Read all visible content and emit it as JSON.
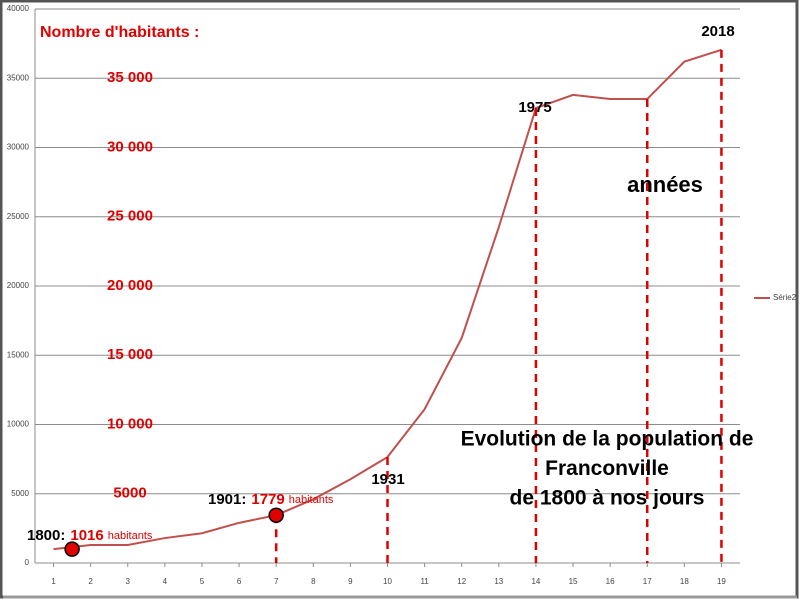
{
  "chart_data": {
    "type": "line",
    "x": [
      1,
      2,
      3,
      4,
      5,
      6,
      7,
      8,
      9,
      10,
      11,
      12,
      13,
      14,
      15,
      16,
      17,
      18,
      19
    ],
    "series": [
      {
        "name": "Série2",
        "color": "#c0504d",
        "values": [
          1000,
          1300,
          1300,
          1800,
          2150,
          2900,
          3450,
          4600,
          6050,
          7650,
          11100,
          16250,
          24250,
          32850,
          33800,
          33500,
          33500,
          36200,
          37050
        ]
      }
    ],
    "xlim": [
      0.5,
      19.5
    ],
    "xticks": [
      1,
      2,
      3,
      4,
      5,
      6,
      7,
      8,
      9,
      10,
      11,
      12,
      13,
      14,
      15,
      16,
      17,
      18,
      19
    ],
    "ylim": [
      0,
      40000
    ],
    "yticks": [
      0,
      5000,
      10000,
      15000,
      20000,
      25000,
      30000,
      35000,
      40000
    ],
    "grid": true,
    "legend": "right",
    "y_caption": "Nombre d'habitants :",
    "y_overlay_labels": [
      {
        "value": 35000,
        "label": "35 000"
      },
      {
        "value": 30000,
        "label": "30 000"
      },
      {
        "value": 25000,
        "label": "25 000"
      },
      {
        "value": 20000,
        "label": "20 000"
      },
      {
        "value": 15000,
        "label": "15 000"
      },
      {
        "value": 10000,
        "label": "10 000"
      },
      {
        "value": 5000,
        "label": "5000"
      }
    ],
    "highlights": [
      {
        "x": 1.5,
        "y": 1000,
        "year": "1800:",
        "count": "1016",
        "unit": "habitants"
      },
      {
        "x": 7,
        "y": 3450,
        "year": "1901:",
        "count": "1779",
        "unit": "habitants"
      }
    ],
    "dashed_x": [
      7,
      10,
      14,
      17,
      19
    ],
    "year_labels": [
      "1931",
      "1975",
      "2018"
    ],
    "x_caption": "années",
    "title_lines": [
      "Evolution de la population de",
      "Franconville",
      "de 1800 à nos jours"
    ]
  }
}
